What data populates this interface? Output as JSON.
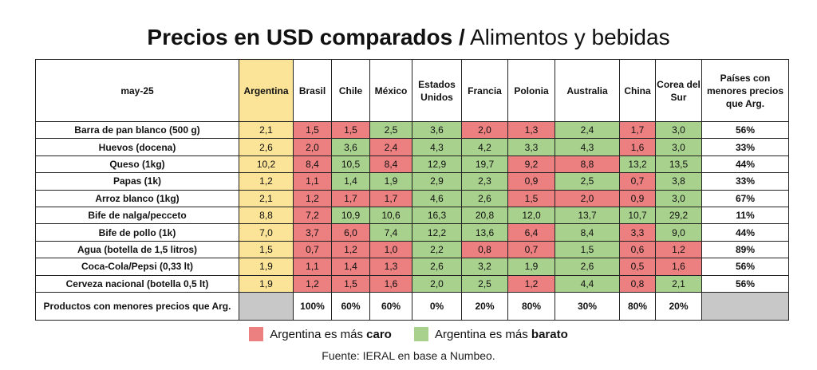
{
  "title_bold": "Precios en USD comparados /",
  "title_light": "Alimentos y bebidas",
  "colors": {
    "caro": "#ec7f7f",
    "barato": "#a9d18e",
    "argentina": "#fbe397",
    "na": "#c8c8c8"
  },
  "chart_data": {
    "type": "table",
    "corner_label": "may-25",
    "columns": [
      "Argentina",
      "Brasil",
      "Chile",
      "México",
      "Estados Unidos",
      "Francia",
      "Polonia",
      "Australia",
      "China",
      "Corea del Sur"
    ],
    "last_column": "Países con menores precios que Arg.",
    "rows": [
      {
        "product": "Barra de pan blanco (500 g)",
        "values": [
          "2,1",
          "1,5",
          "1,5",
          "2,5",
          "3,6",
          "2,0",
          "1,3",
          "2,4",
          "1,7",
          "3,0"
        ],
        "pct": "56%"
      },
      {
        "product": "Huevos (docena)",
        "values": [
          "2,6",
          "2,0",
          "3,6",
          "2,4",
          "4,3",
          "4,2",
          "3,3",
          "4,3",
          "1,6",
          "3,0"
        ],
        "pct": "33%"
      },
      {
        "product": "Queso (1kg)",
        "values": [
          "10,2",
          "8,4",
          "10,5",
          "8,4",
          "12,9",
          "19,7",
          "9,2",
          "8,8",
          "13,2",
          "13,5"
        ],
        "pct": "44%"
      },
      {
        "product": "Papas (1k)",
        "values": [
          "1,2",
          "1,1",
          "1,4",
          "1,9",
          "2,9",
          "2,3",
          "0,9",
          "2,5",
          "0,7",
          "3,8"
        ],
        "pct": "33%"
      },
      {
        "product": "Arroz blanco (1kg)",
        "values": [
          "2,1",
          "1,2",
          "1,7",
          "1,7",
          "4,6",
          "2,6",
          "1,5",
          "2,0",
          "0,9",
          "3,0"
        ],
        "pct": "67%"
      },
      {
        "product": "Bife de nalga/pecceto",
        "values": [
          "8,8",
          "7,2",
          "10,9",
          "10,6",
          "16,3",
          "20,8",
          "12,0",
          "13,7",
          "10,7",
          "29,2"
        ],
        "pct": "11%"
      },
      {
        "product": "Bife de pollo (1k)",
        "values": [
          "7,0",
          "3,7",
          "6,0",
          "7,4",
          "12,2",
          "13,6",
          "6,4",
          "8,4",
          "3,3",
          "9,0"
        ],
        "pct": "44%"
      },
      {
        "product": "Agua (botella de 1,5 litros)",
        "values": [
          "1,5",
          "0,7",
          "1,2",
          "1,0",
          "2,2",
          "0,8",
          "0,7",
          "1,5",
          "0,6",
          "1,2"
        ],
        "pct": "89%"
      },
      {
        "product": "Coca-Cola/Pepsi (0,33 lt)",
        "values": [
          "1,9",
          "1,1",
          "1,4",
          "1,3",
          "2,6",
          "3,2",
          "1,9",
          "2,6",
          "0,5",
          "1,6"
        ],
        "pct": "56%"
      },
      {
        "product": "Cerveza nacional (botella 0,5 lt)",
        "values": [
          "1,9",
          "1,2",
          "1,5",
          "1,6",
          "2,0",
          "2,5",
          "1,2",
          "4,4",
          "0,8",
          "2,1"
        ],
        "pct": "56%"
      }
    ],
    "cell_colors": [
      [
        "red",
        "red",
        "green",
        "green",
        "red",
        "red",
        "green",
        "red",
        "green"
      ],
      [
        "red",
        "green",
        "red",
        "green",
        "green",
        "green",
        "green",
        "red",
        "green"
      ],
      [
        "red",
        "green",
        "red",
        "green",
        "green",
        "red",
        "red",
        "green",
        "green"
      ],
      [
        "red",
        "green",
        "green",
        "green",
        "green",
        "red",
        "green",
        "red",
        "green"
      ],
      [
        "red",
        "red",
        "red",
        "green",
        "green",
        "red",
        "red",
        "red",
        "green"
      ],
      [
        "red",
        "green",
        "green",
        "green",
        "green",
        "green",
        "green",
        "green",
        "green"
      ],
      [
        "red",
        "red",
        "green",
        "green",
        "green",
        "red",
        "green",
        "red",
        "green"
      ],
      [
        "red",
        "red",
        "red",
        "green",
        "red",
        "red",
        "green",
        "red",
        "red"
      ],
      [
        "red",
        "red",
        "red",
        "green",
        "green",
        "green",
        "green",
        "red",
        "red"
      ],
      [
        "red",
        "red",
        "red",
        "green",
        "green",
        "red",
        "green",
        "red",
        "green"
      ]
    ],
    "footer_label": "Productos con menores precios que Arg.",
    "footer_values": [
      "100%",
      "60%",
      "60%",
      "0%",
      "20%",
      "80%",
      "30%",
      "80%",
      "20%"
    ]
  },
  "legend": {
    "caro_prefix": "Argentina es más ",
    "caro_bold": "caro",
    "barato_prefix": "Argentina es más ",
    "barato_bold": "barato"
  },
  "source": "Fuente: IERAL en base a Numbeo."
}
